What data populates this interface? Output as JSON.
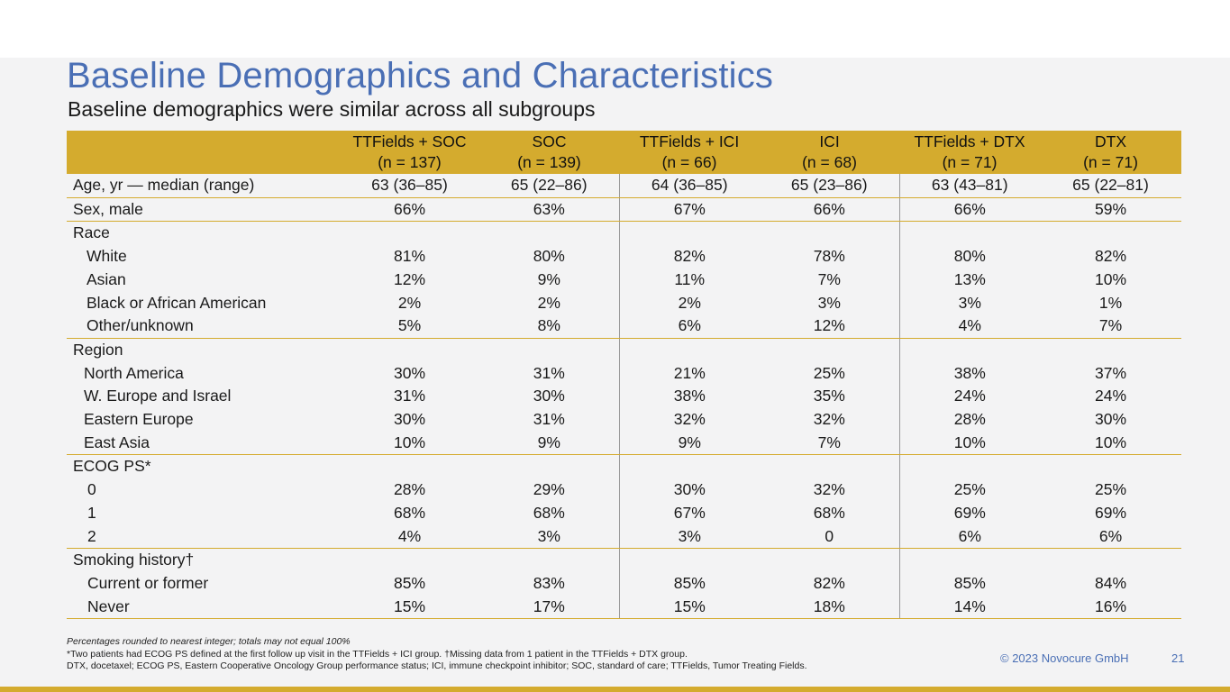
{
  "slide": {
    "title": "Baseline Demographics and Characteristics",
    "subtitle": "Baseline demographics were similar across all subgroups",
    "copyright": "© 2023 Novocure GmbH",
    "page_number": "21",
    "accent_color": "#d4ab2e",
    "title_color": "#4a6fb5"
  },
  "table": {
    "columns": [
      {
        "name": "TTFields + SOC",
        "n": "(n = 137)"
      },
      {
        "name": "SOC",
        "n": "(n = 139)"
      },
      {
        "name": "TTFields + ICI",
        "n": "(n = 66)"
      },
      {
        "name": "ICI",
        "n": "(n = 68)"
      },
      {
        "name": "TTFields + DTX",
        "n": "(n = 71)"
      },
      {
        "name": "DTX",
        "n": "(n = 71)"
      }
    ],
    "rows": {
      "age": {
        "label": "Age, yr — median (range)",
        "values": [
          "63 (36–85)",
          "65 (22–86)",
          "64 (36–85)",
          "65 (23–86)",
          "63 (43–81)",
          "65 (22–81)"
        ]
      },
      "sex": {
        "label": "Sex, male",
        "values": [
          "66%",
          "63%",
          "67%",
          "66%",
          "66%",
          "59%"
        ]
      },
      "race": {
        "label": "Race"
      },
      "white": {
        "label": "White",
        "values": [
          "81%",
          "80%",
          "82%",
          "78%",
          "80%",
          "82%"
        ]
      },
      "asian": {
        "label": "Asian",
        "values": [
          "12%",
          "9%",
          "11%",
          "7%",
          "13%",
          "10%"
        ]
      },
      "black": {
        "label": "Black or African American",
        "values": [
          "2%",
          "2%",
          "2%",
          "3%",
          "3%",
          "1%"
        ]
      },
      "other": {
        "label": "Other/unknown",
        "values": [
          "5%",
          "8%",
          "6%",
          "12%",
          "4%",
          "7%"
        ]
      },
      "region": {
        "label": "Region"
      },
      "north_america": {
        "label": "North America",
        "values": [
          "30%",
          "31%",
          "21%",
          "25%",
          "38%",
          "37%"
        ]
      },
      "w_europe": {
        "label": "W. Europe and Israel",
        "values": [
          "31%",
          "30%",
          "38%",
          "35%",
          "24%",
          "24%"
        ]
      },
      "e_europe": {
        "label": "Eastern Europe",
        "values": [
          "30%",
          "31%",
          "32%",
          "32%",
          "28%",
          "30%"
        ]
      },
      "east_asia": {
        "label": "East Asia",
        "values": [
          "10%",
          "9%",
          "9%",
          "7%",
          "10%",
          "10%"
        ]
      },
      "ecog": {
        "label": "ECOG PS*"
      },
      "ecog0": {
        "label": "0",
        "values": [
          "28%",
          "29%",
          "30%",
          "32%",
          "25%",
          "25%"
        ]
      },
      "ecog1": {
        "label": "1",
        "values": [
          "68%",
          "68%",
          "67%",
          "68%",
          "69%",
          "69%"
        ]
      },
      "ecog2": {
        "label": "2",
        "values": [
          "4%",
          "3%",
          "3%",
          "0",
          "6%",
          "6%"
        ]
      },
      "smoking": {
        "label": "Smoking history†"
      },
      "current": {
        "label": "Current or former",
        "values": [
          "85%",
          "83%",
          "85%",
          "82%",
          "85%",
          "84%"
        ]
      },
      "never": {
        "label": "Never",
        "values": [
          "15%",
          "17%",
          "15%",
          "18%",
          "14%",
          "16%"
        ]
      }
    }
  },
  "footnotes": {
    "line1": "Percentages rounded to nearest integer; totals may not equal 100%",
    "line2": "*Two patients had ECOG PS defined at the first follow up visit in the TTFields + ICI group. †Missing data from 1 patient in the TTFields + DTX group.",
    "line3": "DTX, docetaxel; ECOG PS, Eastern Cooperative Oncology Group performance status; ICI, immune checkpoint inhibitor; SOC, standard of care; TTFields, Tumor Treating Fields."
  }
}
